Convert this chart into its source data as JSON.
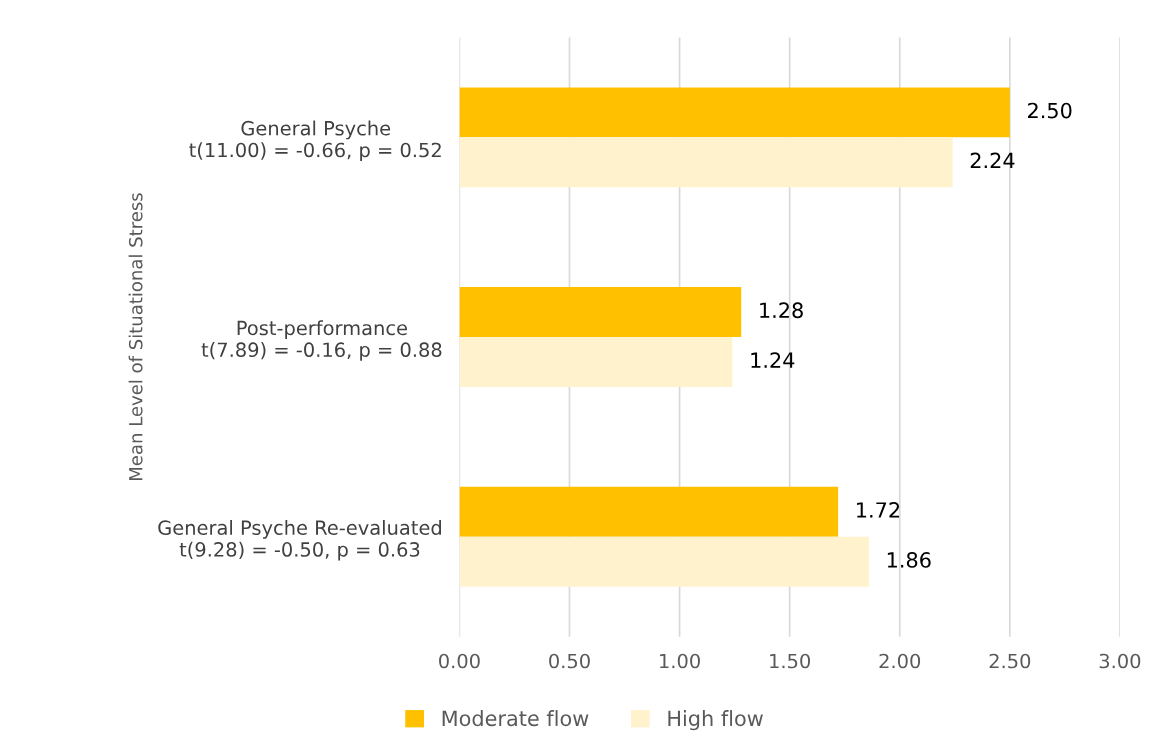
{
  "chart_data": {
    "type": "bar",
    "orientation": "horizontal",
    "ylabel": "Mean Level of Situational Stress",
    "categories": [
      "General Psyche\nt(11.00) = -0.66, p = 0.52",
      "Post-performance\nt(7.89) = -0.16, p = 0.88",
      "General Psyche Re-evaluated\nt(9.28) = -0.50, p = 0.63"
    ],
    "series": [
      {
        "name": "Moderate flow",
        "color": "#ffc000",
        "values": [
          2.5,
          1.28,
          1.72
        ],
        "value_labels": [
          "2.50",
          "1.28",
          "1.72"
        ]
      },
      {
        "name": "High flow",
        "color": "#fff2cc",
        "values": [
          2.24,
          1.24,
          1.86
        ],
        "value_labels": [
          "2.24",
          "1.24",
          "1.86"
        ]
      }
    ],
    "xlim": [
      0,
      3
    ],
    "xticks": [
      {
        "value": 0,
        "label": "0.00"
      },
      {
        "value": 0.5,
        "label": "0.50"
      },
      {
        "value": 1,
        "label": "1.00"
      },
      {
        "value": 1.5,
        "label": "1.50"
      },
      {
        "value": 2,
        "label": "2.00"
      },
      {
        "value": 2.5,
        "label": "2.50"
      },
      {
        "value": 3,
        "label": "3.00"
      }
    ],
    "grid": "x",
    "legend": "bottom"
  }
}
